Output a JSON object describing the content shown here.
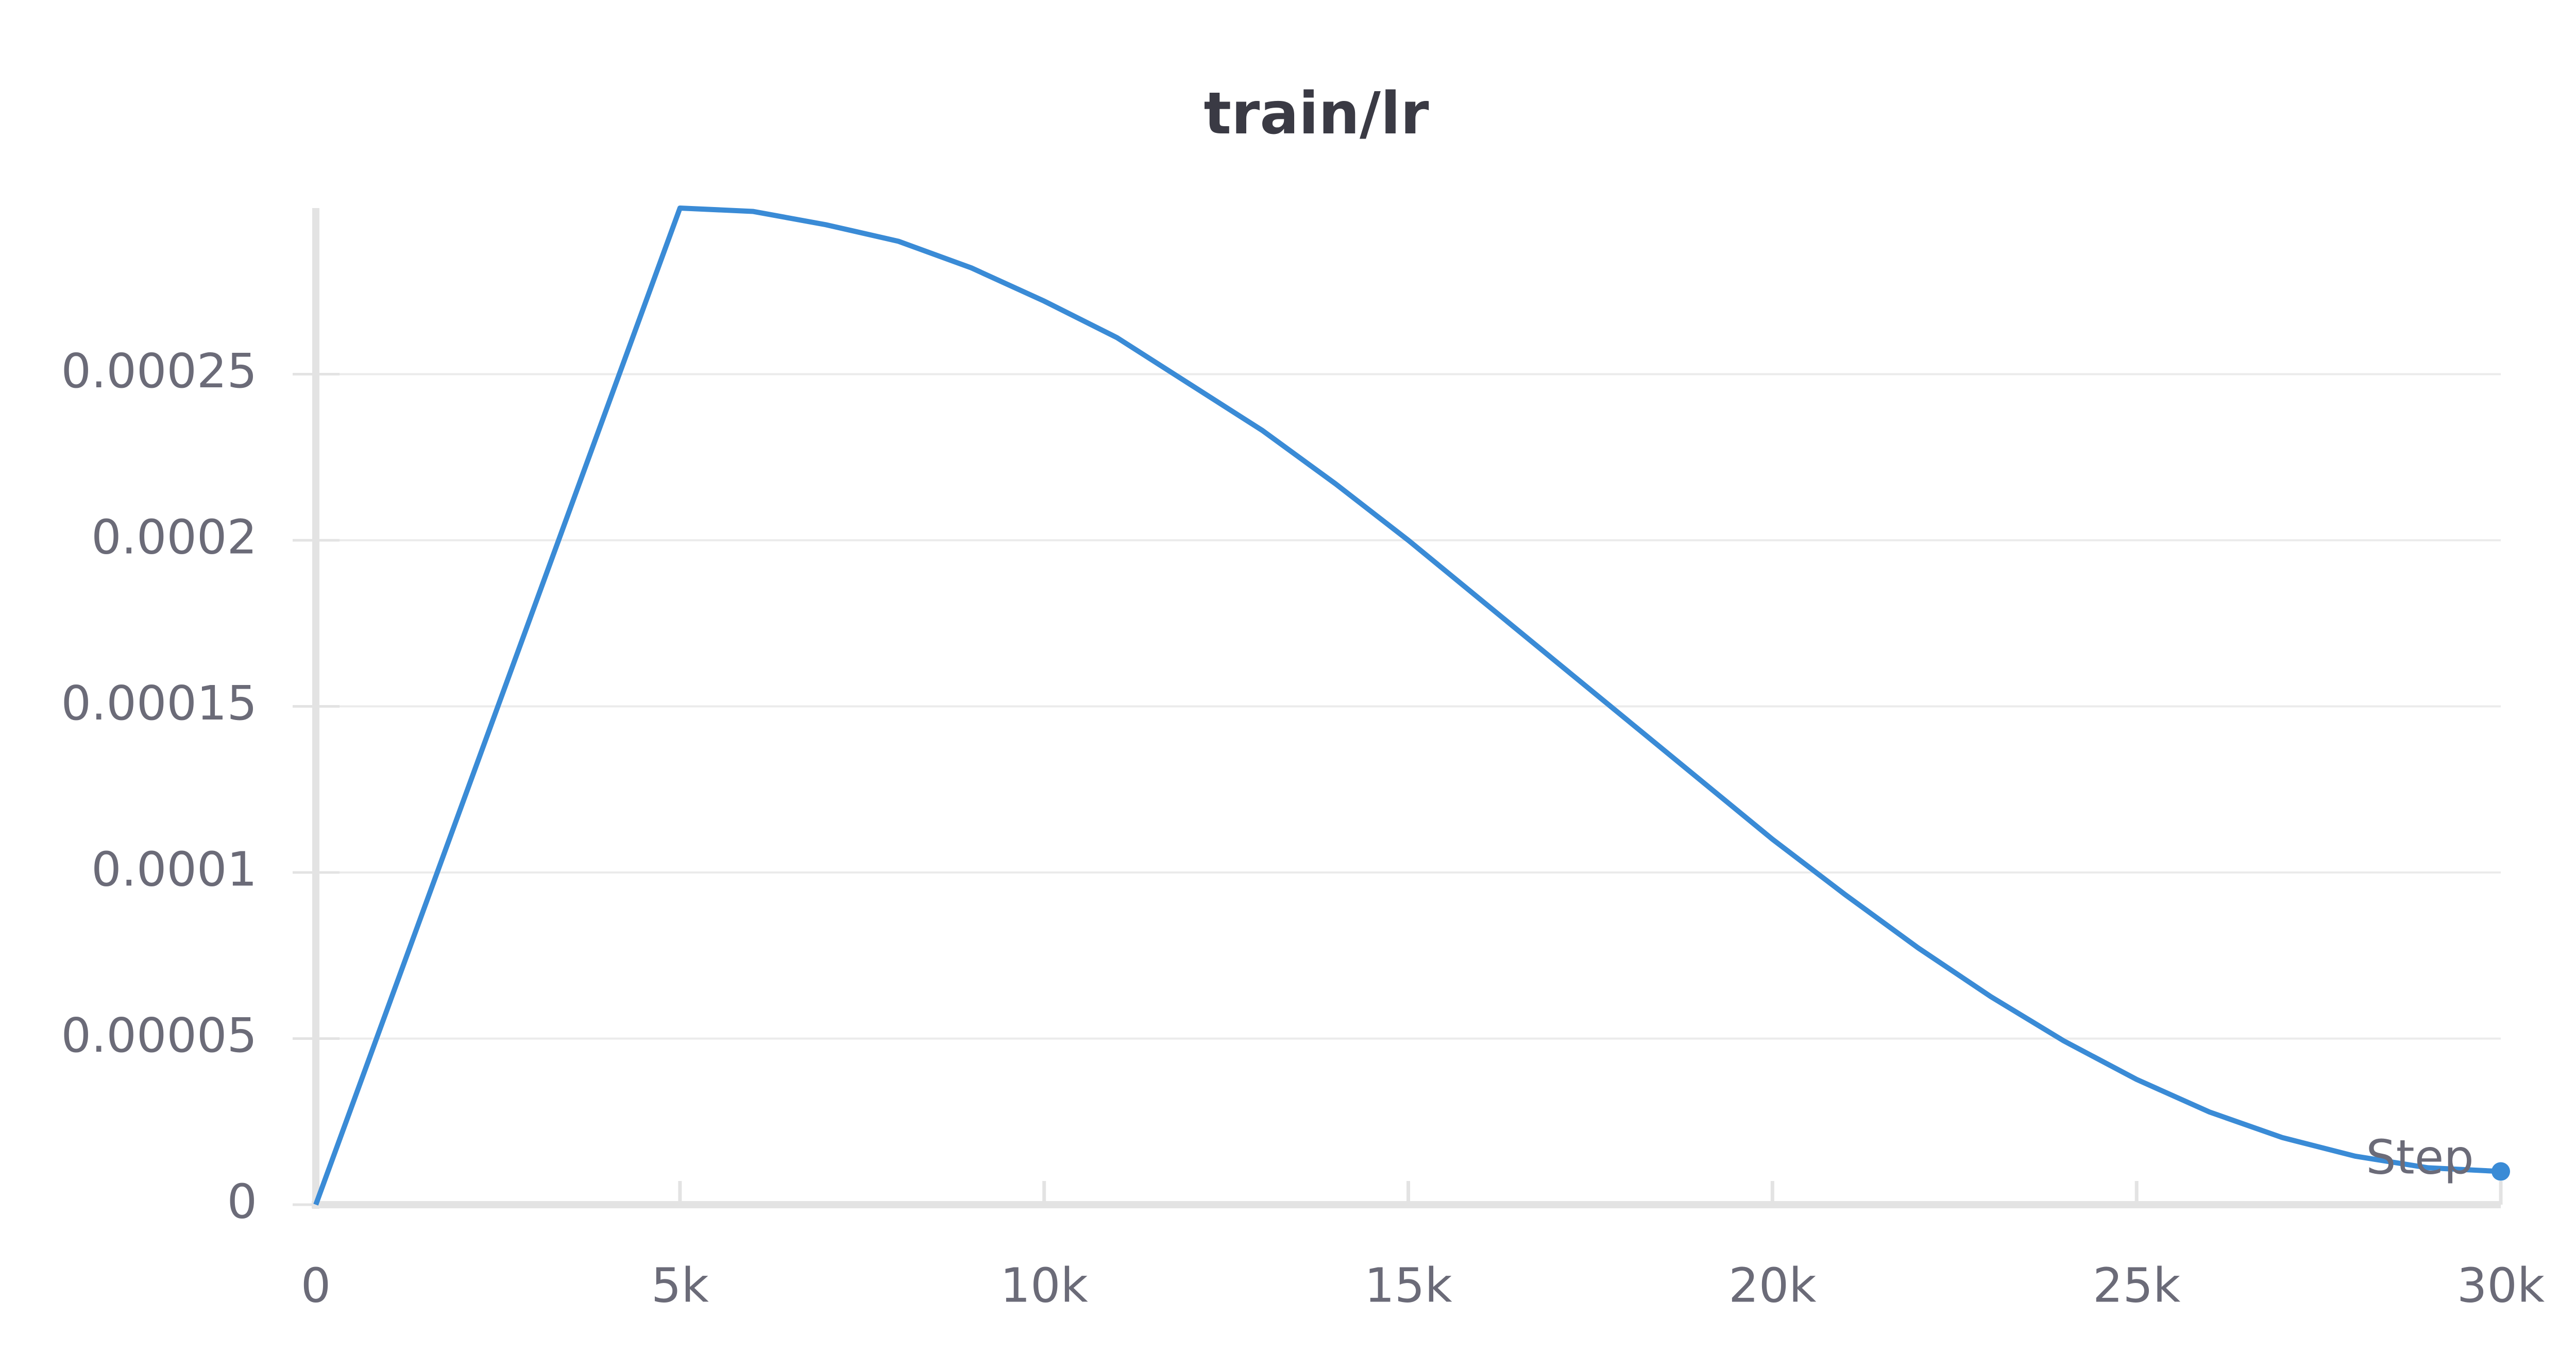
{
  "chart_data": {
    "type": "line",
    "title": "train/lr",
    "x_label": "Step",
    "x": [
      0,
      5000,
      6000,
      7000,
      8000,
      9000,
      10000,
      11000,
      12000,
      13000,
      14000,
      15000,
      16000,
      17000,
      18000,
      19000,
      20000,
      21000,
      22000,
      23000,
      24000,
      25000,
      26000,
      27000,
      28000,
      29000,
      30000
    ],
    "series": [
      {
        "name": "train/lr",
        "color": "#3a8bd6",
        "values": [
          0,
          0.0003,
          0.000299,
          0.000295,
          0.00029,
          0.000282,
          0.000272,
          0.000261,
          0.000247,
          0.000233,
          0.000217,
          0.0002,
          0.000182,
          0.000164,
          0.000146,
          0.000128,
          0.00011,
          9.33e-05,
          7.73e-05,
          6.26e-05,
          4.93e-05,
          3.77e-05,
          2.79e-05,
          2.02e-05,
          1.46e-05,
          1.11e-05,
          1e-05
        ]
      }
    ],
    "xlim": [
      0,
      30000
    ],
    "xticks": [
      0,
      {
        "value": 5000,
        "label": "5k"
      },
      {
        "value": 10000,
        "label": "10k"
      },
      {
        "value": 15000,
        "label": "15k"
      },
      {
        "value": 20000,
        "label": "20k"
      },
      {
        "value": 25000,
        "label": "25k"
      },
      {
        "value": 30000,
        "label": "30k"
      }
    ],
    "ylim": [
      0,
      0.0003
    ],
    "yticks": [
      0,
      5e-05,
      0.0001,
      0.00015,
      0.0002,
      0.00025
    ],
    "grid": true
  }
}
